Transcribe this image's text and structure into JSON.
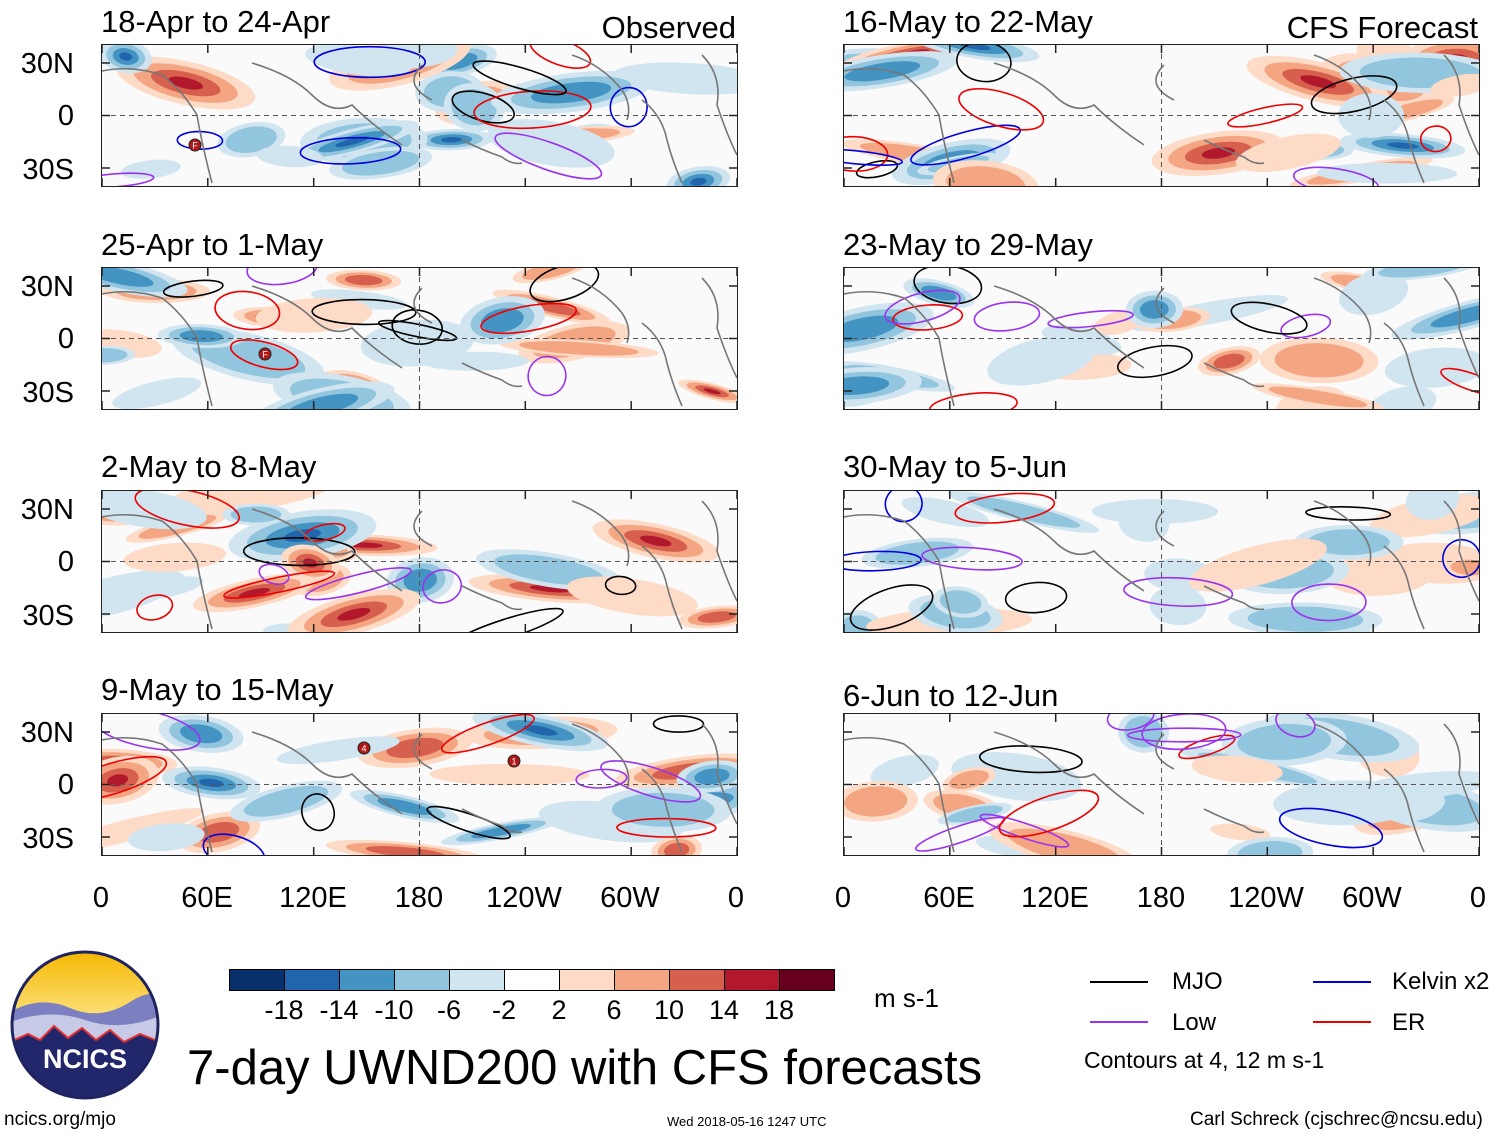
{
  "headers": {
    "left": "Observed",
    "right": "CFS Forecast"
  },
  "panels": [
    {
      "title": "18-Apr to 24-Apr",
      "column": "left",
      "row": 0
    },
    {
      "title": "25-Apr to 1-May",
      "column": "left",
      "row": 1
    },
    {
      "title": "2-May to 8-May",
      "column": "left",
      "row": 2
    },
    {
      "title": "9-May to 15-May",
      "column": "left",
      "row": 3
    },
    {
      "title": "16-May to 22-May",
      "column": "right",
      "row": 0
    },
    {
      "title": "23-May to 29-May",
      "column": "right",
      "row": 1
    },
    {
      "title": "30-May to 5-Jun",
      "column": "right",
      "row": 2
    },
    {
      "title": "6-Jun to 12-Jun",
      "column": "right",
      "row": 3
    }
  ],
  "lat_labels": [
    "30N",
    "0",
    "30S"
  ],
  "lon_labels": [
    "0",
    "60E",
    "120E",
    "180",
    "120W",
    "60W",
    "0"
  ],
  "colorbar": {
    "colors": [
      "#08306b",
      "#2166ac",
      "#4393c3",
      "#92c5de",
      "#d1e5f0",
      "#ffffff",
      "#fddbc7",
      "#f4a582",
      "#d6604d",
      "#b2182b",
      "#67001f"
    ],
    "labels": [
      "-18",
      "-14",
      "-10",
      "-6",
      "-2",
      "2",
      "6",
      "10",
      "14",
      "18"
    ],
    "units": "m s-1"
  },
  "legend": {
    "mjo": {
      "label": "MJO",
      "color": "#000000"
    },
    "kelvin": {
      "label": "Kelvin x2",
      "color": "#0000dd"
    },
    "low": {
      "label": "Low",
      "color": "#9933ee"
    },
    "er": {
      "label": "ER",
      "color": "#ee0000"
    },
    "note": "Contours at 4, 12 m s-1"
  },
  "main_title": "7-day UWND200 with CFS forecasts",
  "logo": {
    "text": "NCICS"
  },
  "footer": {
    "url": "ncics.org/mjo",
    "timestamp": "Wed 2018-05-16 1247 UTC",
    "author": "Carl Schreck (cjschrec@ncsu.edu)"
  },
  "storm_markers": [
    {
      "panel": 0,
      "label": "F"
    },
    {
      "panel": 1,
      "label": "F"
    },
    {
      "panel": 3,
      "label": "4"
    },
    {
      "panel": 3,
      "label": "1"
    }
  ]
}
